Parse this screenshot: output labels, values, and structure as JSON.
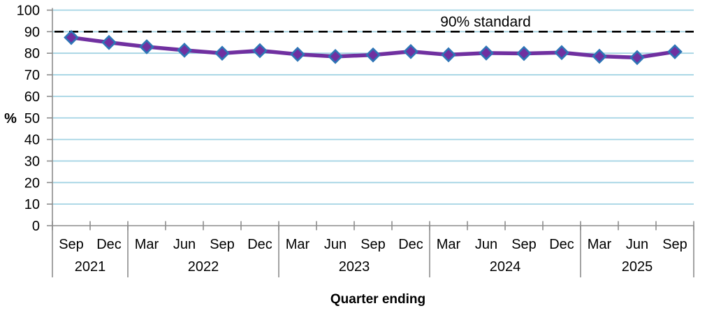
{
  "chart_data": {
    "type": "line",
    "title": "",
    "xlabel": "Quarter ending",
    "ylabel": "%",
    "ylim": [
      0,
      100
    ],
    "ytick_step": 10,
    "ytick_labels": [
      "0",
      "10",
      "20",
      "30",
      "40",
      "50",
      "60",
      "70",
      "80",
      "90",
      "100"
    ],
    "categories": [
      "Sep",
      "Dec",
      "Mar",
      "Jun",
      "Sep",
      "Dec",
      "Mar",
      "Jun",
      "Sep",
      "Dec",
      "Mar",
      "Jun",
      "Sep",
      "Dec",
      "Mar",
      "Jun",
      "Sep"
    ],
    "year_groups": [
      {
        "label": "2021",
        "count": 2
      },
      {
        "label": "2022",
        "count": 4
      },
      {
        "label": "2023",
        "count": 4
      },
      {
        "label": "2024",
        "count": 4
      },
      {
        "label": "2025",
        "count": 3
      }
    ],
    "series": [
      {
        "name": "percent-within-standard",
        "values": [
          87.3,
          85.0,
          83.0,
          81.4,
          80.0,
          81.2,
          79.5,
          78.5,
          79.2,
          80.8,
          79.3,
          80.1,
          79.9,
          80.3,
          78.6,
          78.0,
          80.7
        ],
        "color": "#7030A0",
        "marker": "diamond",
        "marker_border_color": "#2E75B6"
      }
    ],
    "reference_line": {
      "value": 90,
      "label": "90% standard",
      "style": "dashed",
      "color": "#000000"
    },
    "grid": "horizontal",
    "gridline_color": "#A4D4E4",
    "axis_color": "#8C8C8C",
    "legend": "none"
  }
}
